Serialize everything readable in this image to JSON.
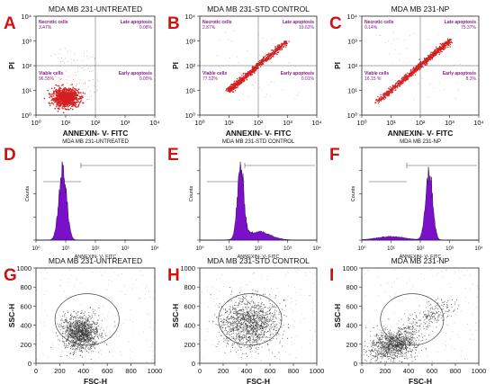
{
  "colors": {
    "scatter_red": "#d42020",
    "histogram_purple": "#7a10c8",
    "histogram_edge": "#1a0033",
    "quadrant_label": "#8a1a8a",
    "density_gray": "#333333",
    "panel_letter": "#d11010"
  },
  "chart_data": [
    {
      "panel": "A",
      "type": "scatter",
      "title": "MDA MB 231-UNTREATED",
      "xlabel": "ANNEXIN- V- FITC",
      "ylabel": "PI",
      "x_scale": "log",
      "y_scale": "log",
      "xlim": [
        1,
        10000
      ],
      "ylim": [
        1,
        10000
      ],
      "x_ticks": [
        "10⁰",
        "10¹",
        "10²",
        "10³",
        "10⁴"
      ],
      "y_ticks": [
        "10⁰",
        "10¹",
        "10²",
        "10³",
        "10⁴"
      ],
      "quadrants": [
        {
          "name": "Necrotic cells",
          "value": "3.47%"
        },
        {
          "name": "Late apoptosis",
          "value": "0.08%"
        },
        {
          "name": "Viable cells",
          "value": "96.55%"
        },
        {
          "name": "Early apoptosis",
          "value": "0.00%"
        }
      ],
      "cluster": {
        "center_x": 10,
        "center_y": 5
      }
    },
    {
      "panel": "B",
      "type": "scatter",
      "title": "MDA MB 231-STD CONTROL",
      "xlabel": "ANNEXIN- V- FITC",
      "ylabel": "PI",
      "x_scale": "log",
      "y_scale": "log",
      "xlim": [
        1,
        10000
      ],
      "ylim": [
        1,
        10000
      ],
      "x_ticks": [
        "10⁰",
        "10¹",
        "10²",
        "10³",
        "10⁴"
      ],
      "y_ticks": [
        "10⁰",
        "10¹",
        "10²",
        "10³",
        "10⁴"
      ],
      "quadrants": [
        {
          "name": "Necrotic cells",
          "value": "2.87%"
        },
        {
          "name": "Late apoptosis",
          "value": "19.62%"
        },
        {
          "name": "Viable cells",
          "value": "77.52%"
        },
        {
          "name": "Early apoptosis",
          "value": "0.01%"
        }
      ],
      "diagonal": {
        "from": [
          10,
          10
        ],
        "to": [
          1000,
          1000
        ]
      }
    },
    {
      "panel": "C",
      "type": "scatter",
      "title": "MDA MB 231-NP",
      "xlabel": "ANNEXIN- V- FITC",
      "ylabel": "PI",
      "x_scale": "log",
      "y_scale": "log",
      "xlim": [
        1,
        10000
      ],
      "ylim": [
        1,
        10000
      ],
      "x_ticks": [
        "10⁰",
        "10¹",
        "10²",
        "10³",
        "10⁴"
      ],
      "y_ticks": [
        "10⁰",
        "10¹",
        "10²",
        "10³",
        "10⁴"
      ],
      "quadrants": [
        {
          "name": "Necrotic cells",
          "value": "0.14%"
        },
        {
          "name": "Late apoptosis",
          "value": "75.37%"
        },
        {
          "name": "Viable cells",
          "value": "16.15 %"
        },
        {
          "name": "Early apoptosis",
          "value": "8.3%"
        }
      ],
      "diagonal": {
        "from": [
          3,
          3
        ],
        "to": [
          1000,
          1000
        ]
      }
    },
    {
      "panel": "D",
      "type": "histogram",
      "title": "MDA MB 231-UNTREATED",
      "xlabel": "ANNEXIN- V- FITC",
      "ylabel": "Counts",
      "x_scale": "log",
      "xlim": [
        1,
        10000
      ],
      "x_ticks": [
        "10⁰",
        "10¹",
        "10²",
        "10³",
        "10⁴"
      ],
      "peak_x": 8
    },
    {
      "panel": "E",
      "type": "histogram",
      "title": "MDA MB 231-STD CONTROL",
      "xlabel": "ANNEXIN- V- FITC",
      "ylabel": "Counts",
      "x_scale": "log",
      "xlim": [
        1,
        10000
      ],
      "x_ticks": [
        "10⁰",
        "10¹",
        "10²",
        "10³",
        "10⁴"
      ],
      "peak_x": 25
    },
    {
      "panel": "F",
      "type": "histogram",
      "title": "MDA MB 231-NP",
      "xlabel": "ANNEXIN- V- FITC",
      "ylabel": "Counts",
      "x_scale": "log",
      "xlim": [
        1,
        10000
      ],
      "x_ticks": [
        "10⁰",
        "10¹",
        "10²",
        "10³",
        "10⁴"
      ],
      "peak_x": 200
    },
    {
      "panel": "G",
      "type": "scatter",
      "title": "MDA MB 231-UNTREATED",
      "xlabel": "FSC-H",
      "ylabel": "SSC-H",
      "xlim": [
        0,
        1000
      ],
      "ylim": [
        0,
        1000
      ],
      "x_ticks": [
        "0",
        "200",
        "400",
        "600",
        "800",
        "1000"
      ],
      "y_ticks": [
        "0",
        "200",
        "400",
        "600",
        "800",
        "1000"
      ],
      "gate": {
        "center": [
          430,
          460
        ],
        "radius": 270
      },
      "cluster": {
        "center_x": 380,
        "center_y": 320
      }
    },
    {
      "panel": "H",
      "type": "scatter",
      "title": "MDA MB 231-STD CONTROL",
      "xlabel": "FSC-H",
      "ylabel": "SSC-H",
      "xlim": [
        0,
        1000
      ],
      "ylim": [
        0,
        1000
      ],
      "x_ticks": [
        "0",
        "200",
        "400",
        "600",
        "800",
        "1000"
      ],
      "y_ticks": [
        "0",
        "200",
        "400",
        "600",
        "800",
        "1000"
      ],
      "gate": {
        "center": [
          430,
          460
        ],
        "radius": 270
      },
      "cluster": {
        "center_x": 420,
        "center_y": 420
      }
    },
    {
      "panel": "I",
      "type": "scatter",
      "title": "MDA MB 231-NP",
      "xlabel": "FSC-H",
      "ylabel": "SSC-H",
      "xlim": [
        0,
        1000
      ],
      "ylim": [
        0,
        1000
      ],
      "x_ticks": [
        "0",
        "200",
        "400",
        "600",
        "800",
        "1000"
      ],
      "y_ticks": [
        "0",
        "200",
        "400",
        "600",
        "800",
        "1000"
      ],
      "gate": {
        "center": [
          430,
          460
        ],
        "radius": 270
      },
      "cluster": {
        "center_x": 280,
        "center_y": 200
      }
    }
  ]
}
